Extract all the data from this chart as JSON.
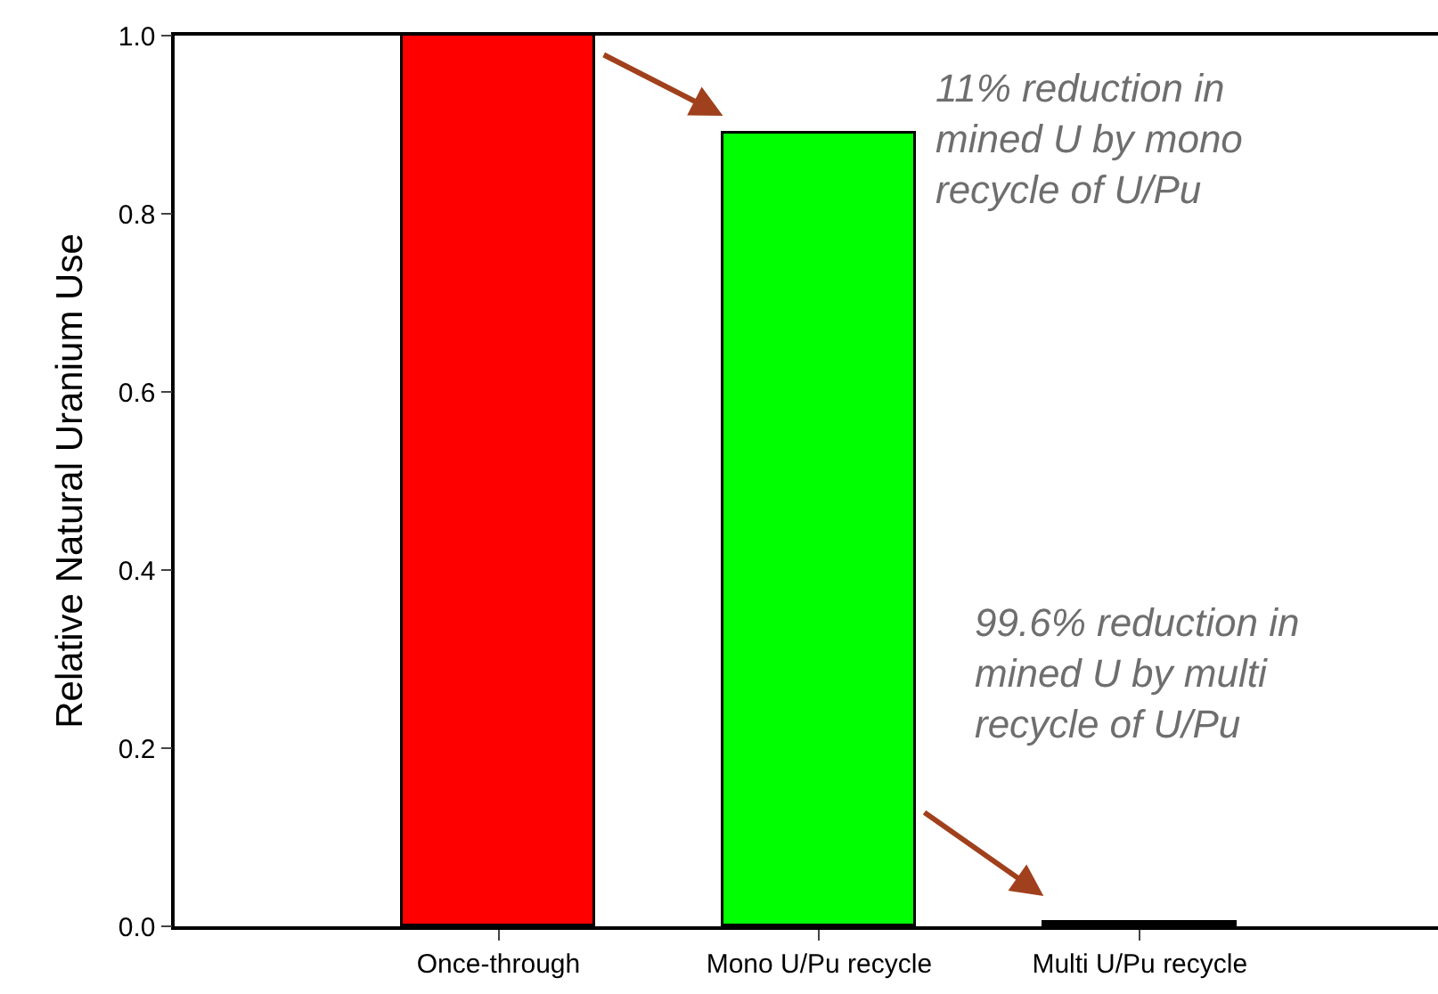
{
  "chart_data": {
    "type": "bar",
    "ylabel": "Relative Natural Uranium Use",
    "categories": [
      "Once-through",
      "Mono U/Pu recycle",
      "Multi U/Pu recycle"
    ],
    "values": [
      1.0,
      0.89,
      0.004
    ],
    "colors": [
      "#ff0000",
      "#00ff00",
      "#000000"
    ],
    "ylim": [
      0,
      1.0
    ],
    "yticks": [
      {
        "value": 0,
        "label": "0.0"
      },
      0.2,
      0.4,
      0.6,
      0.8,
      {
        "value": 1.0,
        "label": "1.0"
      }
    ],
    "legend": false,
    "annotations": [
      "11% reduction in\nmined U by mono\nrecycle of U/Pu",
      "99.6% reduction in\nmined U by multi\nrecycle of U/Pu"
    ]
  }
}
